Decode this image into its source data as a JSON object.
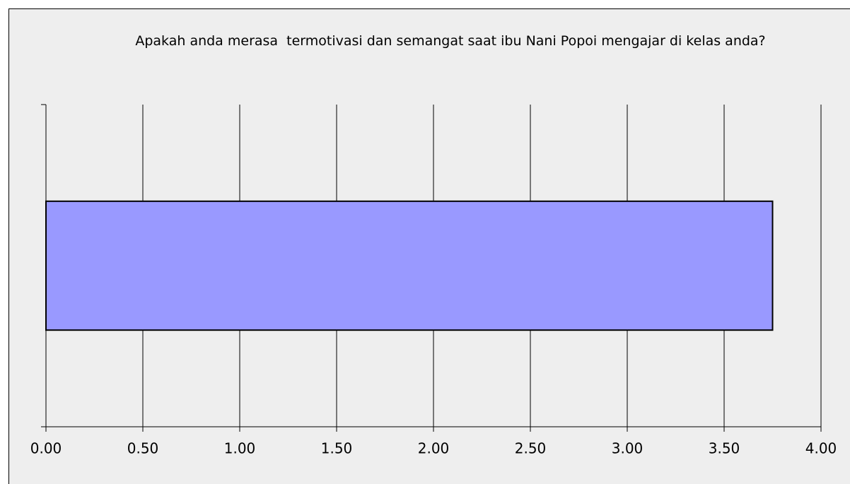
{
  "chart_data": {
    "type": "bar",
    "orientation": "horizontal",
    "title": "Apakah anda merasa  termotivasi dan semangat saat ibu Nani Popoi mengajar di kelas anda?",
    "categories": [
      null
    ],
    "values": [
      3.75
    ],
    "color": "#9999ff",
    "xlim": [
      0,
      4
    ],
    "xticks": [
      {
        "value": 0,
        "label": "0.00"
      },
      {
        "value": 0.5,
        "label": "0.50"
      },
      {
        "value": 1,
        "label": "1.00"
      },
      {
        "value": 1.5,
        "label": "1.50"
      },
      {
        "value": 2,
        "label": "2.00"
      },
      {
        "value": 2.5,
        "label": "2.50"
      },
      {
        "value": 3,
        "label": "3.00"
      },
      {
        "value": 3.5,
        "label": "3.50"
      },
      {
        "value": 4,
        "label": "4.00"
      }
    ],
    "grid": true
  }
}
